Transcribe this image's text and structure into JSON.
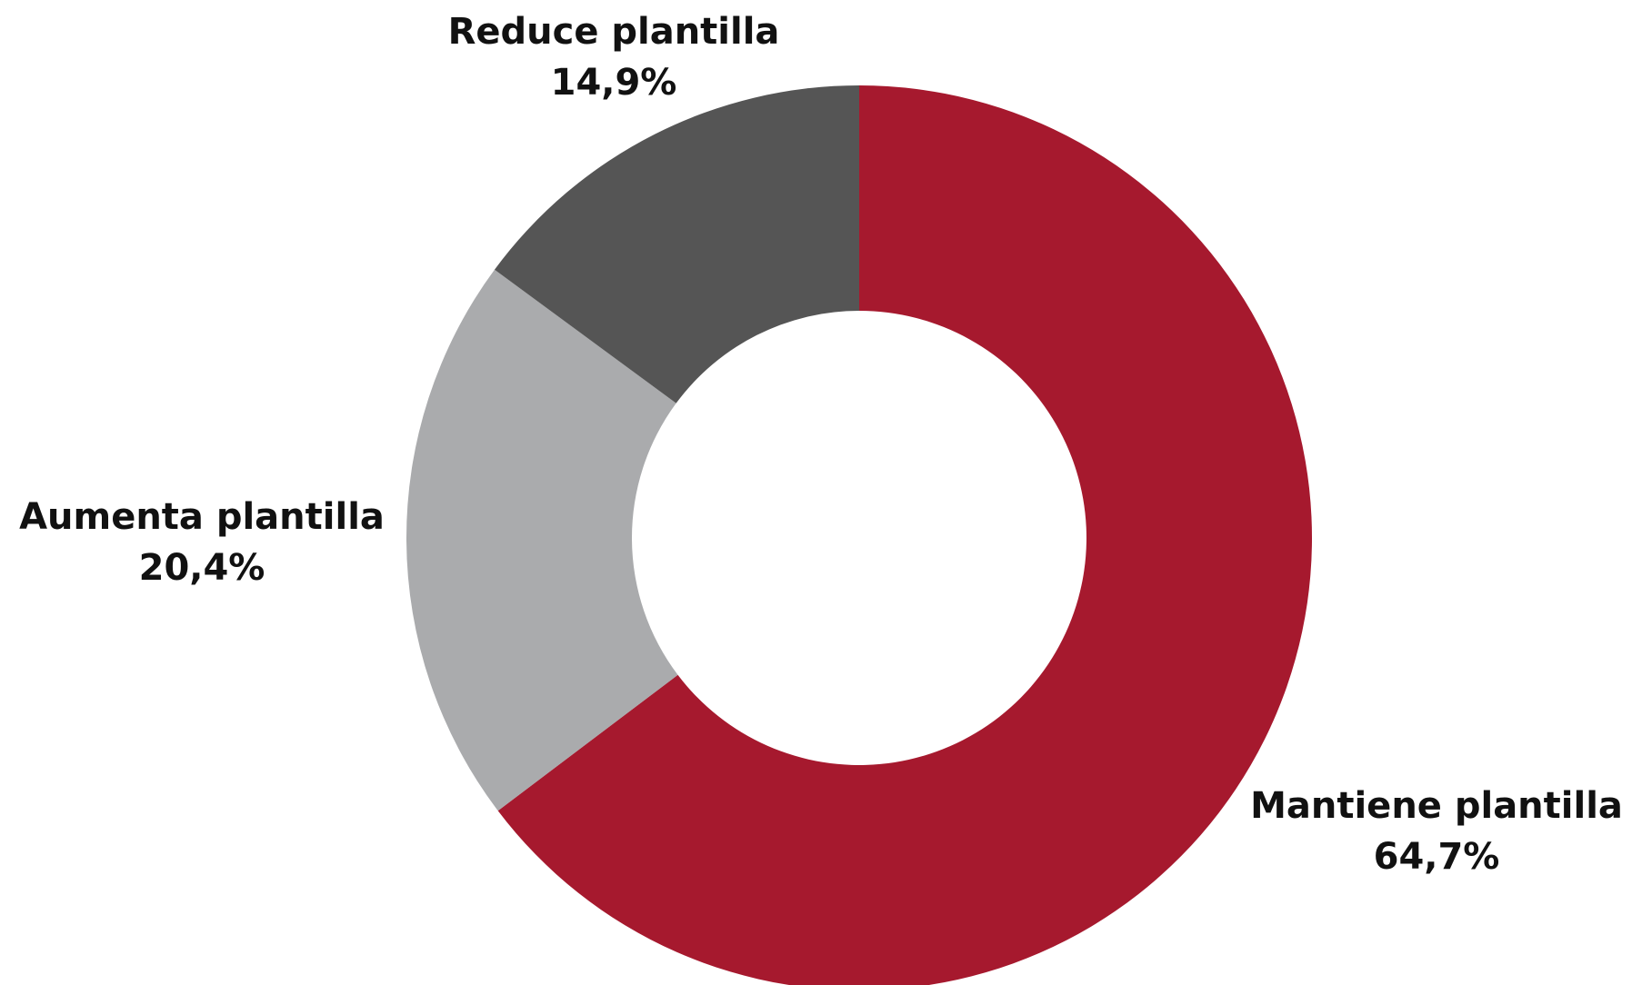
{
  "chart_data": {
    "type": "pie",
    "variant": "donut",
    "title": "",
    "start_angle_deg": 0,
    "direction": "clockwise",
    "slices": [
      {
        "label": "Mantiene plantilla",
        "value": 64.7,
        "value_label": "64,7%",
        "color": "#a6192e"
      },
      {
        "label": "Aumenta plantilla",
        "value": 20.4,
        "value_label": "20,4%",
        "color": "#aaabad"
      },
      {
        "label": "Reduce plantilla",
        "value": 14.9,
        "value_label": "14,9%",
        "color": "#555555"
      }
    ]
  }
}
